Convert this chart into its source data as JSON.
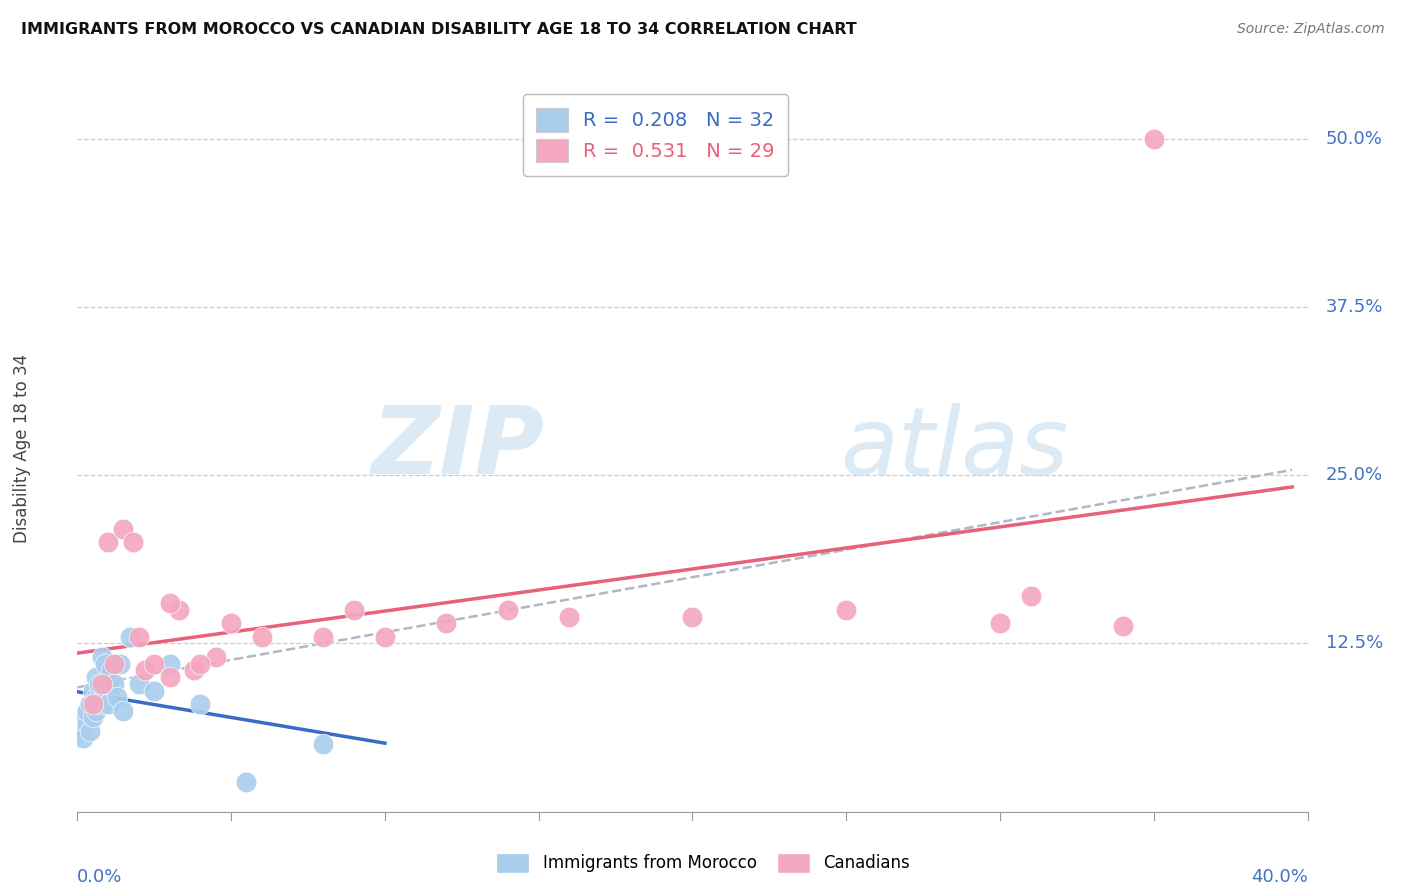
{
  "title": "IMMIGRANTS FROM MOROCCO VS CANADIAN DISABILITY AGE 18 TO 34 CORRELATION CHART",
  "source": "Source: ZipAtlas.com",
  "ylabel": "Disability Age 18 to 34",
  "ytick_values": [
    0.0,
    0.125,
    0.25,
    0.375,
    0.5
  ],
  "ytick_labels": [
    "",
    "12.5%",
    "25.0%",
    "37.5%",
    "50.0%"
  ],
  "xlim": [
    0.0,
    0.4
  ],
  "ylim": [
    0.0,
    0.54
  ],
  "watermark_zip": "ZIP",
  "watermark_atlas": "atlas",
  "color_morocco": "#A8CDED",
  "color_canada": "#F4A7BF",
  "trendline_morocco_color": "#3B6BC4",
  "trendline_canada_color": "#E8607A",
  "trendline_overall_color": "#B0B8C8",
  "legend_r1_val": "0.208",
  "legend_n1_val": "32",
  "legend_r2_val": "0.531",
  "legend_n2_val": "29",
  "morocco_x": [
    0.001,
    0.002,
    0.002,
    0.003,
    0.003,
    0.004,
    0.004,
    0.005,
    0.005,
    0.006,
    0.006,
    0.006,
    0.007,
    0.007,
    0.008,
    0.008,
    0.009,
    0.009,
    0.01,
    0.01,
    0.011,
    0.012,
    0.013,
    0.014,
    0.015,
    0.017,
    0.02,
    0.025,
    0.03,
    0.04,
    0.055,
    0.08
  ],
  "morocco_y": [
    0.06,
    0.055,
    0.07,
    0.065,
    0.075,
    0.06,
    0.08,
    0.07,
    0.09,
    0.075,
    0.085,
    0.1,
    0.085,
    0.095,
    0.08,
    0.115,
    0.09,
    0.11,
    0.08,
    0.095,
    0.105,
    0.095,
    0.085,
    0.11,
    0.075,
    0.13,
    0.095,
    0.09,
    0.11,
    0.08,
    0.022,
    0.05
  ],
  "canada_x": [
    0.005,
    0.008,
    0.01,
    0.012,
    0.015,
    0.018,
    0.02,
    0.022,
    0.025,
    0.03,
    0.033,
    0.038,
    0.045,
    0.05,
    0.06,
    0.08,
    0.09,
    0.1,
    0.12,
    0.14,
    0.16,
    0.2,
    0.25,
    0.3,
    0.31,
    0.34,
    0.35,
    0.03,
    0.04
  ],
  "canada_y": [
    0.08,
    0.095,
    0.2,
    0.11,
    0.21,
    0.2,
    0.13,
    0.105,
    0.11,
    0.1,
    0.15,
    0.105,
    0.115,
    0.14,
    0.13,
    0.13,
    0.15,
    0.13,
    0.14,
    0.15,
    0.145,
    0.145,
    0.15,
    0.14,
    0.16,
    0.138,
    0.5,
    0.155,
    0.11
  ]
}
